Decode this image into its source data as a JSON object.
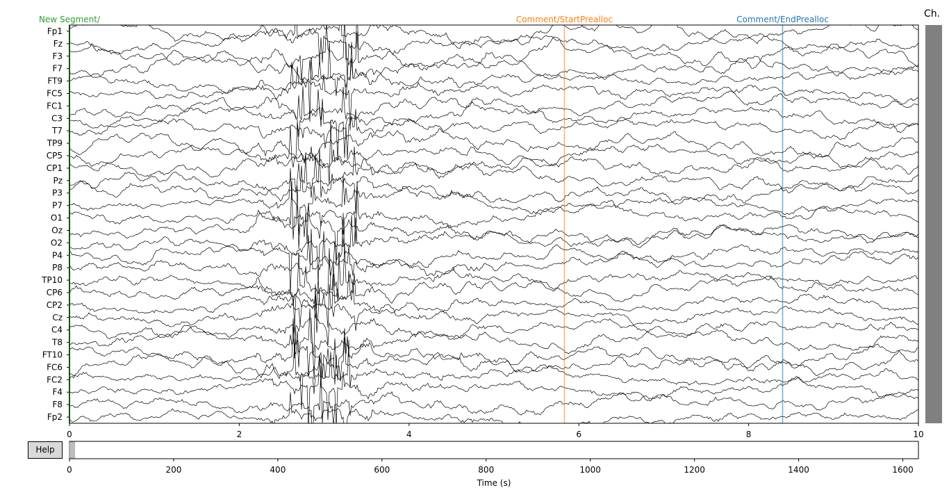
{
  "chart_data": {
    "type": "line",
    "channels": [
      "Fp1",
      "Fz",
      "F3",
      "F7",
      "FT9",
      "FC5",
      "FC1",
      "C3",
      "T7",
      "TP9",
      "CP5",
      "CP1",
      "Pz",
      "P3",
      "P7",
      "O1",
      "Oz",
      "O2",
      "P4",
      "P8",
      "TP10",
      "CP6",
      "CP2",
      "Cz",
      "C4",
      "T8",
      "FT10",
      "FC6",
      "FC2",
      "F4",
      "F8",
      "Fp2"
    ],
    "xlim": [
      0,
      10
    ],
    "x_ticks": [
      "0",
      "2",
      "4",
      "6",
      "8",
      "10"
    ],
    "annotations": [
      {
        "label": "New Segment/",
        "time": 0.0,
        "color": "#2ca02c"
      },
      {
        "label": "Comment/StartPrealloc",
        "time": 5.83,
        "color": "#ff7f0e"
      },
      {
        "label": "Comment/EndPrealloc",
        "time": 8.4,
        "color": "#1f77b4"
      }
    ],
    "overview": {
      "xlim": [
        0,
        1630
      ],
      "x_ticks": [
        "0",
        "200",
        "400",
        "600",
        "800",
        "1000",
        "1200",
        "1400",
        "1600"
      ],
      "window_start": 0,
      "window_end": 10,
      "xlabel": "Time (s)"
    }
  },
  "ui": {
    "help_label": "Help",
    "channel_scroll_title": "Ch."
  }
}
